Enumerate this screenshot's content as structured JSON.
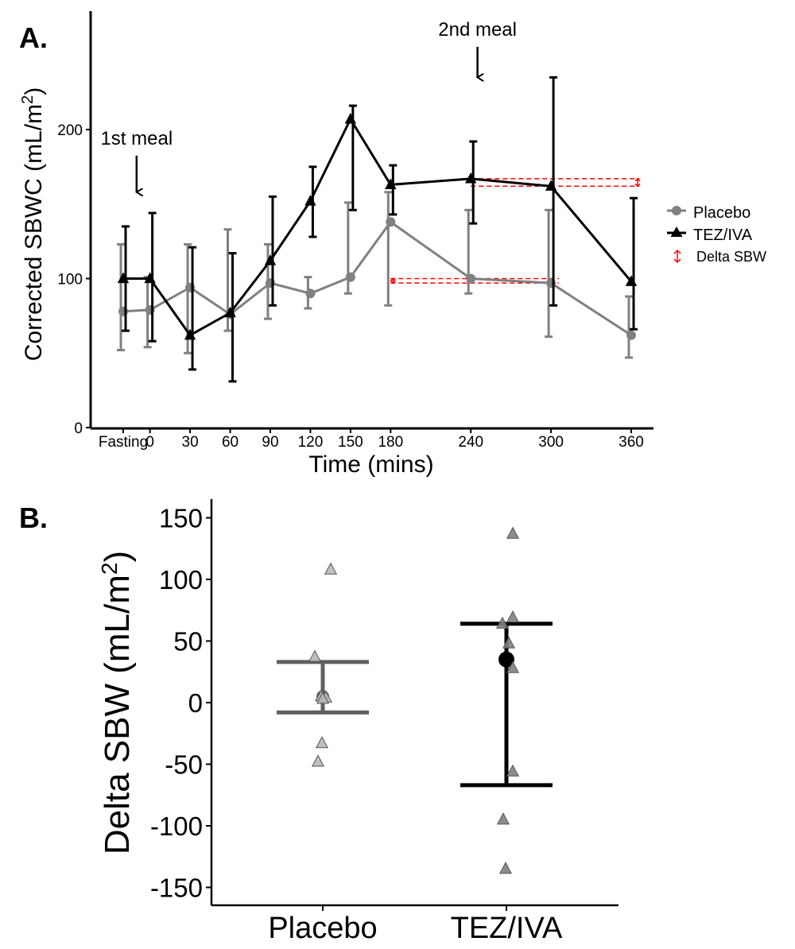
{
  "colors": {
    "placebo": "#808080",
    "tez": "#000000",
    "delta": "#ff0000",
    "placebo_points": "#b8b8b8",
    "tez_points": "#808080",
    "placebo_summary": "#606060"
  },
  "chart_data": [
    {
      "panel": "A.",
      "type": "line",
      "xlabel": "Time (mins)",
      "ylabel": "Corrected SBWC (mL/m",
      "ylabel_sup": "2",
      "ylabel_end": ")",
      "ylim": [
        0,
        270
      ],
      "yticks": [
        0,
        100,
        200
      ],
      "categories": [
        "Fasting",
        "0",
        "30",
        "60",
        "90",
        "120",
        "150",
        "180",
        "240",
        "300",
        "360"
      ],
      "x": [
        -20,
        0,
        30,
        60,
        90,
        120,
        150,
        180,
        240,
        300,
        360
      ],
      "series": [
        {
          "name": "Placebo",
          "marker": "circle",
          "values": [
            78,
            79,
            94,
            76,
            97,
            90,
            101,
            138,
            100,
            97,
            62
          ],
          "err_low": [
            52,
            54,
            50,
            65,
            73,
            80,
            90,
            82,
            90,
            61,
            47
          ],
          "err_high": [
            123,
            101,
            123,
            133,
            123,
            101,
            151,
            158,
            146,
            146,
            88
          ]
        },
        {
          "name": "TEZ/IVA",
          "marker": "triangle",
          "values": [
            100,
            100,
            62,
            77,
            112,
            152,
            207,
            163,
            167,
            162,
            98
          ],
          "err_low": [
            65,
            58,
            39,
            31,
            82,
            128,
            146,
            143,
            137,
            82,
            66
          ],
          "err_high": [
            135,
            144,
            121,
            117,
            155,
            175,
            216,
            176,
            192,
            235,
            154
          ]
        }
      ],
      "delta_lines": [
        {
          "x_from": 240,
          "x_to": 360,
          "y": 167
        },
        {
          "x_from": 240,
          "x_to": 360,
          "y": 162
        },
        {
          "x_from": 180,
          "x_to": 300,
          "y": 100
        },
        {
          "x_from": 180,
          "x_to": 300,
          "y": 97
        }
      ],
      "annotations": [
        {
          "text": "1st meal",
          "x": -10,
          "y": 190,
          "arrow_to_y": 158
        },
        {
          "text": "2nd meal",
          "x": 245,
          "y": 263,
          "arrow_to_y": 235
        }
      ],
      "legend": {
        "position": "right",
        "entries": [
          "Placebo",
          "TEZ/IVA",
          "Delta SBW"
        ]
      }
    },
    {
      "panel": "B.",
      "type": "scatter",
      "xlabel": "",
      "ylabel": "Delta SBW (mL/m",
      "ylabel_sup": "2",
      "ylabel_end": ")",
      "ylim": [
        -163,
        150
      ],
      "yticks": [
        150,
        100,
        50,
        0,
        -50,
        -100,
        -150
      ],
      "ytick_labels": [
        "150",
        "100",
        "50",
        "0",
        "-50",
        "-100",
        "-150"
      ],
      "categories": [
        "Placebo",
        "TEZ/IVA"
      ],
      "groups": [
        {
          "name": "Placebo",
          "points": [
            108,
            37,
            5,
            4,
            3,
            -33,
            -48
          ],
          "jitter": [
            0.1,
            -0.1,
            -0.02,
            0.04,
            0.0,
            -0.01,
            -0.06
          ],
          "mean": 5,
          "upper": 33,
          "lower": -8
        },
        {
          "name": "TEZ/IVA",
          "points": [
            137,
            69,
            64,
            48,
            28,
            -56,
            -95,
            -135
          ],
          "jitter": [
            0.08,
            0.08,
            -0.05,
            0.03,
            0.08,
            0.08,
            -0.04,
            -0.01
          ],
          "mean": 35,
          "upper": 64,
          "lower": -67
        }
      ]
    }
  ]
}
